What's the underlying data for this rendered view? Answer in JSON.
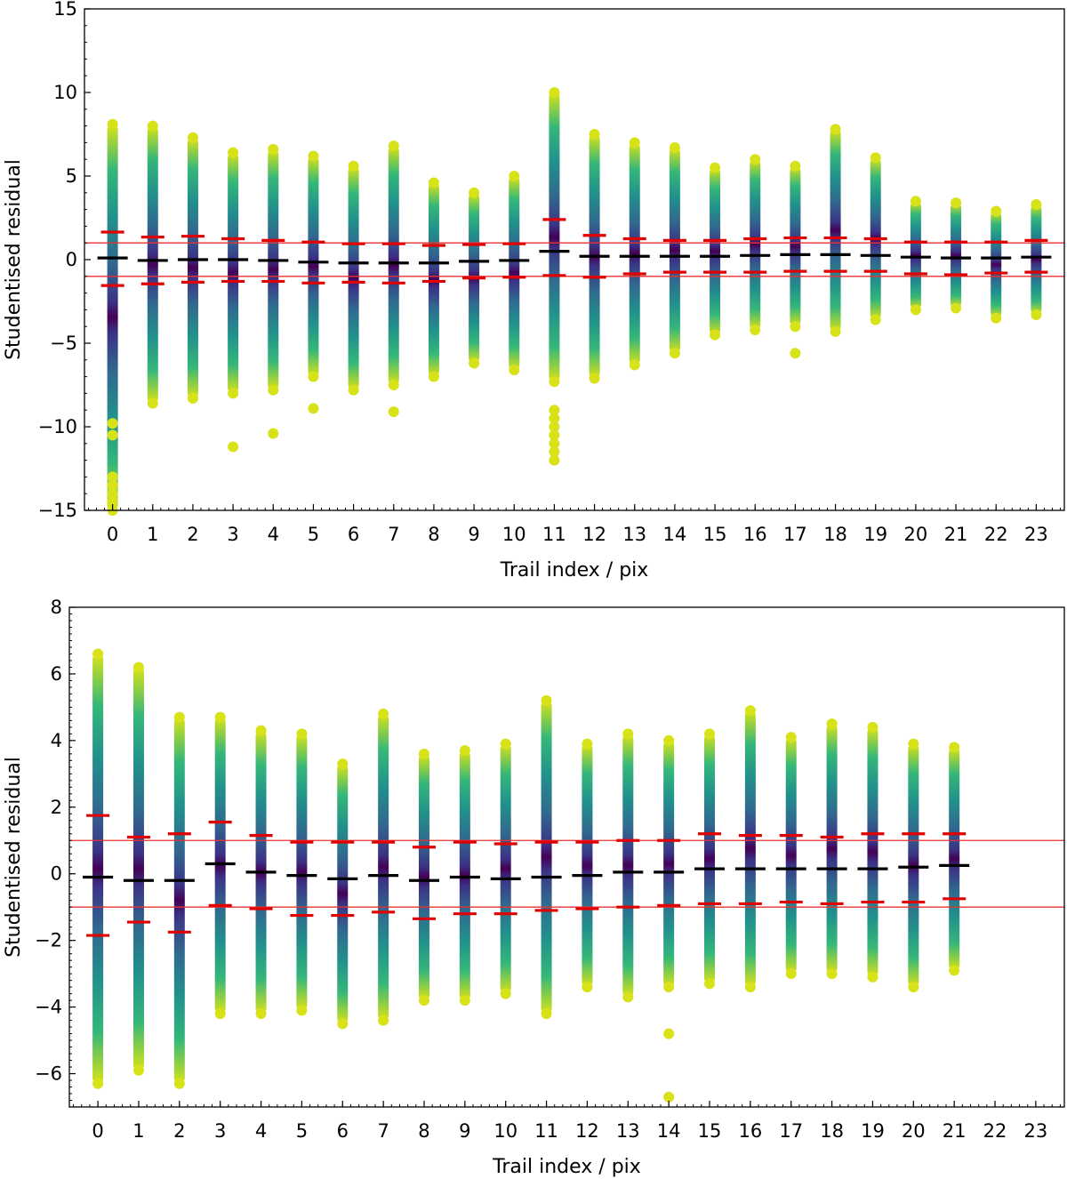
{
  "chart_data": [
    {
      "type": "scatter",
      "title": "",
      "xlabel": "Trail index / pix",
      "ylabel": "Studentised residual",
      "xlim": [
        -0.7,
        23.7
      ],
      "ylim": [
        -15,
        15
      ],
      "yticks": [
        -15,
        -10,
        -5,
        0,
        5,
        10,
        15
      ],
      "xticks": [
        0,
        1,
        2,
        3,
        4,
        5,
        6,
        7,
        8,
        9,
        10,
        11,
        12,
        13,
        14,
        15,
        16,
        17,
        18,
        19,
        20,
        21,
        22,
        23
      ],
      "reference_lines": [
        1,
        -1
      ],
      "colors": {
        "reference_line": "#e8322f",
        "mean": "#000000",
        "std": "#e00000",
        "outer": "#d8e219",
        "mid": "#21918c",
        "inner": "#440154"
      },
      "columns": [
        {
          "x": 0,
          "min": -15.0,
          "max": 8.1,
          "mean": 0.1,
          "upper": 1.65,
          "lower": -1.55,
          "outliers": [
            -13.0,
            -13.5,
            -14.0,
            -14.5,
            -10.5,
            -9.8
          ]
        },
        {
          "x": 1,
          "min": -8.6,
          "max": 8.0,
          "mean": -0.05,
          "upper": 1.35,
          "lower": -1.45,
          "outliers": []
        },
        {
          "x": 2,
          "min": -8.3,
          "max": 7.3,
          "mean": 0.0,
          "upper": 1.4,
          "lower": -1.35,
          "outliers": []
        },
        {
          "x": 3,
          "min": -8.0,
          "max": 6.4,
          "mean": 0.0,
          "upper": 1.25,
          "lower": -1.3,
          "outliers": [
            -11.2
          ]
        },
        {
          "x": 4,
          "min": -7.8,
          "max": 6.6,
          "mean": -0.05,
          "upper": 1.15,
          "lower": -1.3,
          "outliers": [
            -10.4
          ]
        },
        {
          "x": 5,
          "min": -7.0,
          "max": 6.2,
          "mean": -0.15,
          "upper": 1.05,
          "lower": -1.4,
          "outliers": [
            -8.9
          ]
        },
        {
          "x": 6,
          "min": -7.8,
          "max": 5.6,
          "mean": -0.2,
          "upper": 0.95,
          "lower": -1.35,
          "outliers": []
        },
        {
          "x": 7,
          "min": -7.5,
          "max": 6.8,
          "mean": -0.2,
          "upper": 0.95,
          "lower": -1.4,
          "outliers": [
            -9.1
          ]
        },
        {
          "x": 8,
          "min": -7.0,
          "max": 4.6,
          "mean": -0.2,
          "upper": 0.85,
          "lower": -1.3,
          "outliers": []
        },
        {
          "x": 9,
          "min": -6.2,
          "max": 4.0,
          "mean": -0.1,
          "upper": 0.9,
          "lower": -1.1,
          "outliers": []
        },
        {
          "x": 10,
          "min": -6.6,
          "max": 5.0,
          "mean": -0.05,
          "upper": 0.95,
          "lower": -1.05,
          "outliers": []
        },
        {
          "x": 11,
          "min": -7.3,
          "max": 10.0,
          "mean": 0.5,
          "upper": 2.4,
          "lower": -0.95,
          "outliers": [
            -12.0,
            -11.5,
            -11.0,
            -10.5,
            -10.0,
            -9.5,
            -9.0
          ]
        },
        {
          "x": 12,
          "min": -7.1,
          "max": 7.5,
          "mean": 0.2,
          "upper": 1.45,
          "lower": -1.05,
          "outliers": []
        },
        {
          "x": 13,
          "min": -6.3,
          "max": 7.0,
          "mean": 0.2,
          "upper": 1.25,
          "lower": -0.85,
          "outliers": []
        },
        {
          "x": 14,
          "min": -5.6,
          "max": 6.7,
          "mean": 0.2,
          "upper": 1.15,
          "lower": -0.75,
          "outliers": []
        },
        {
          "x": 15,
          "min": -4.5,
          "max": 5.5,
          "mean": 0.2,
          "upper": 1.15,
          "lower": -0.75,
          "outliers": []
        },
        {
          "x": 16,
          "min": -4.2,
          "max": 6.0,
          "mean": 0.25,
          "upper": 1.25,
          "lower": -0.75,
          "outliers": []
        },
        {
          "x": 17,
          "min": -4.0,
          "max": 5.6,
          "mean": 0.3,
          "upper": 1.3,
          "lower": -0.7,
          "outliers": [
            -5.6
          ]
        },
        {
          "x": 18,
          "min": -4.3,
          "max": 7.8,
          "mean": 0.3,
          "upper": 1.3,
          "lower": -0.7,
          "outliers": []
        },
        {
          "x": 19,
          "min": -3.6,
          "max": 6.1,
          "mean": 0.25,
          "upper": 1.25,
          "lower": -0.7,
          "outliers": []
        },
        {
          "x": 20,
          "min": -3.0,
          "max": 3.5,
          "mean": 0.15,
          "upper": 1.05,
          "lower": -0.85,
          "outliers": []
        },
        {
          "x": 21,
          "min": -2.9,
          "max": 3.4,
          "mean": 0.1,
          "upper": 1.05,
          "lower": -0.9,
          "outliers": []
        },
        {
          "x": 22,
          "min": -3.5,
          "max": 2.9,
          "mean": 0.1,
          "upper": 1.05,
          "lower": -0.8,
          "outliers": []
        },
        {
          "x": 23,
          "min": -3.3,
          "max": 3.3,
          "mean": 0.15,
          "upper": 1.15,
          "lower": -0.75,
          "outliers": []
        }
      ]
    },
    {
      "type": "scatter",
      "title": "",
      "xlabel": "Trail index / pix",
      "ylabel": "Studentised residual",
      "xlim": [
        -0.7,
        23.7
      ],
      "ylim": [
        -7,
        8
      ],
      "yticks": [
        -6,
        -4,
        -2,
        0,
        2,
        4,
        6,
        8
      ],
      "xticks": [
        0,
        1,
        2,
        3,
        4,
        5,
        6,
        7,
        8,
        9,
        10,
        11,
        12,
        13,
        14,
        15,
        16,
        17,
        18,
        19,
        20,
        21,
        22,
        23
      ],
      "reference_lines": [
        1,
        -1
      ],
      "colors": {
        "reference_line": "#e8322f",
        "mean": "#000000",
        "std": "#e00000",
        "outer": "#d8e219",
        "mid": "#21918c",
        "inner": "#440154"
      },
      "columns": [
        {
          "x": 0,
          "min": -6.3,
          "max": 6.6,
          "mean": -0.1,
          "upper": 1.75,
          "lower": -1.85,
          "outliers": []
        },
        {
          "x": 1,
          "min": -5.9,
          "max": 6.2,
          "mean": -0.2,
          "upper": 1.1,
          "lower": -1.45,
          "outliers": []
        },
        {
          "x": 2,
          "min": -6.3,
          "max": 4.7,
          "mean": -0.2,
          "upper": 1.2,
          "lower": -1.75,
          "outliers": []
        },
        {
          "x": 3,
          "min": -4.2,
          "max": 4.7,
          "mean": 0.3,
          "upper": 1.55,
          "lower": -0.95,
          "outliers": []
        },
        {
          "x": 4,
          "min": -4.2,
          "max": 4.3,
          "mean": 0.05,
          "upper": 1.15,
          "lower": -1.05,
          "outliers": []
        },
        {
          "x": 5,
          "min": -4.1,
          "max": 4.2,
          "mean": -0.05,
          "upper": 0.95,
          "lower": -1.25,
          "outliers": []
        },
        {
          "x": 6,
          "min": -4.5,
          "max": 3.3,
          "mean": -0.15,
          "upper": 0.95,
          "lower": -1.25,
          "outliers": []
        },
        {
          "x": 7,
          "min": -4.4,
          "max": 4.8,
          "mean": -0.05,
          "upper": 0.95,
          "lower": -1.15,
          "outliers": []
        },
        {
          "x": 8,
          "min": -3.8,
          "max": 3.6,
          "mean": -0.2,
          "upper": 0.8,
          "lower": -1.35,
          "outliers": []
        },
        {
          "x": 9,
          "min": -3.8,
          "max": 3.7,
          "mean": -0.1,
          "upper": 0.95,
          "lower": -1.2,
          "outliers": []
        },
        {
          "x": 10,
          "min": -3.6,
          "max": 3.9,
          "mean": -0.15,
          "upper": 0.9,
          "lower": -1.2,
          "outliers": []
        },
        {
          "x": 11,
          "min": -4.2,
          "max": 5.2,
          "mean": -0.1,
          "upper": 0.95,
          "lower": -1.1,
          "outliers": []
        },
        {
          "x": 12,
          "min": -3.4,
          "max": 3.9,
          "mean": -0.05,
          "upper": 0.95,
          "lower": -1.05,
          "outliers": []
        },
        {
          "x": 13,
          "min": -3.7,
          "max": 4.2,
          "mean": 0.05,
          "upper": 1.0,
          "lower": -1.0,
          "outliers": []
        },
        {
          "x": 14,
          "min": -3.4,
          "max": 4.0,
          "mean": 0.05,
          "upper": 1.0,
          "lower": -0.95,
          "outliers": [
            -4.8,
            -6.7
          ]
        },
        {
          "x": 15,
          "min": -3.3,
          "max": 4.2,
          "mean": 0.15,
          "upper": 1.2,
          "lower": -0.9,
          "outliers": []
        },
        {
          "x": 16,
          "min": -3.4,
          "max": 4.9,
          "mean": 0.15,
          "upper": 1.15,
          "lower": -0.9,
          "outliers": []
        },
        {
          "x": 17,
          "min": -3.0,
          "max": 4.1,
          "mean": 0.15,
          "upper": 1.15,
          "lower": -0.85,
          "outliers": []
        },
        {
          "x": 18,
          "min": -3.0,
          "max": 4.5,
          "mean": 0.15,
          "upper": 1.1,
          "lower": -0.9,
          "outliers": []
        },
        {
          "x": 19,
          "min": -3.1,
          "max": 4.4,
          "mean": 0.15,
          "upper": 1.2,
          "lower": -0.85,
          "outliers": []
        },
        {
          "x": 20,
          "min": -3.4,
          "max": 3.9,
          "mean": 0.2,
          "upper": 1.2,
          "lower": -0.85,
          "outliers": []
        },
        {
          "x": 21,
          "min": -2.9,
          "max": 3.8,
          "mean": 0.25,
          "upper": 1.2,
          "lower": -0.75,
          "outliers": []
        }
      ]
    }
  ]
}
